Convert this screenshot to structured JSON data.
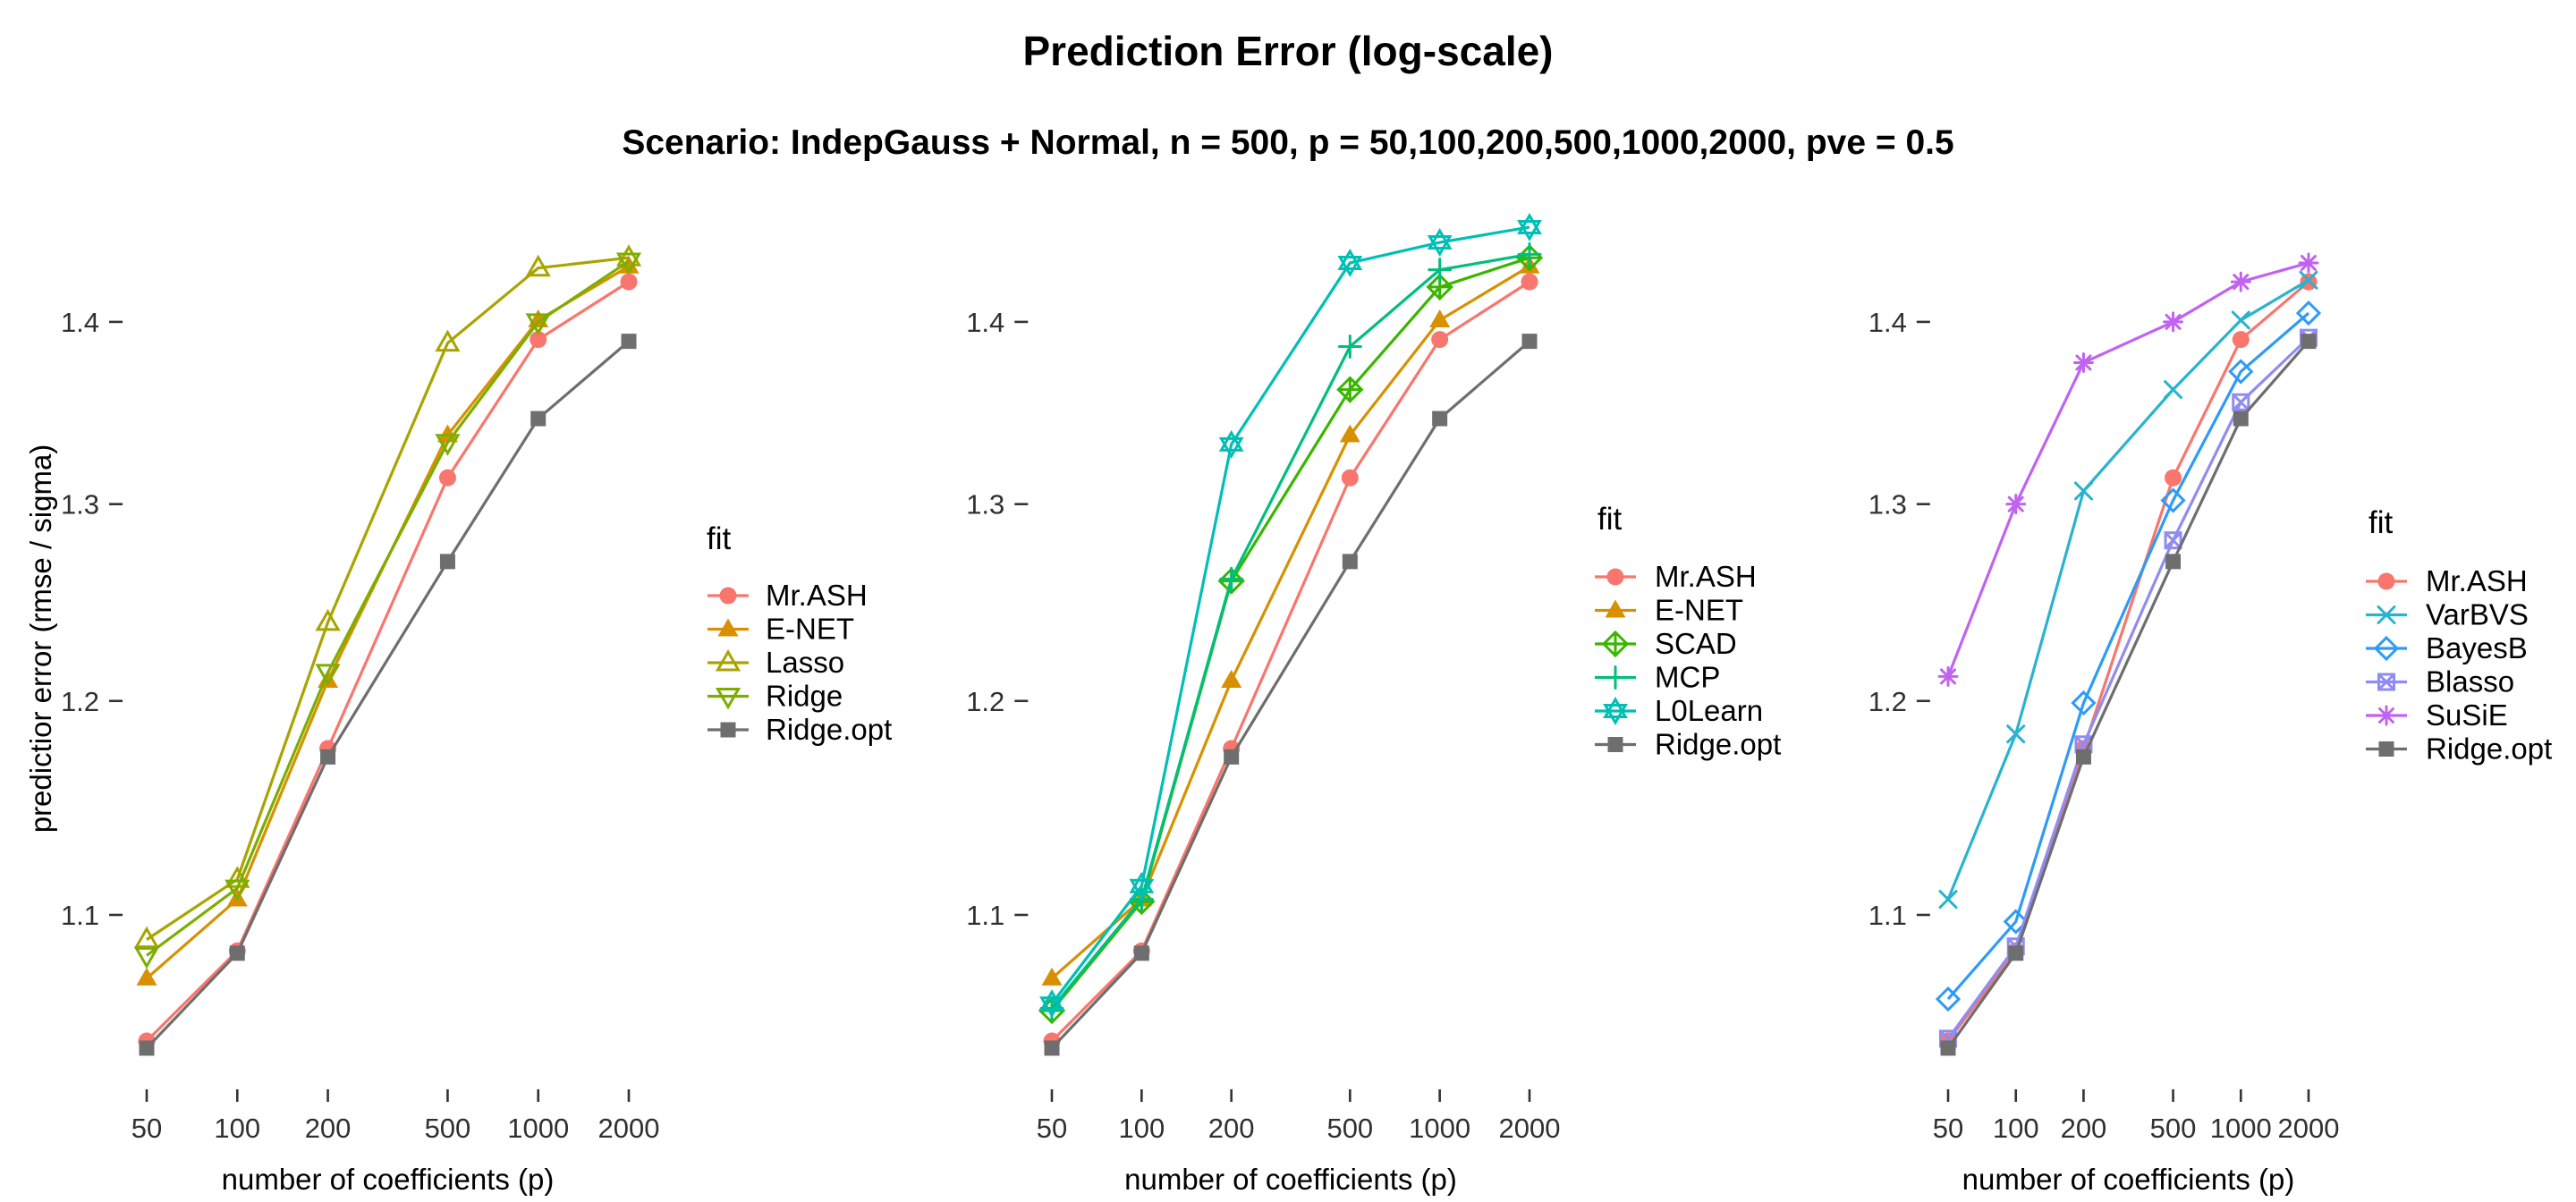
{
  "header": {
    "title": "Prediction Error (log-scale)",
    "subtitle": "Scenario: IndepGauss + Normal, n = 500, p = 50,100,200,500,1000,2000, pve = 0.5"
  },
  "axes": {
    "x_label": "number of coefficients (p)",
    "y_label": "predictior error (rmse / sigma)",
    "x_tick_labels": [
      "50",
      "100",
      "200",
      "500",
      "1000",
      "2000"
    ],
    "y_tick_labels": [
      "1.1",
      "1.2",
      "1.3",
      "1.4"
    ],
    "x_scale": "log",
    "y_scale": "log"
  },
  "legend_title": "fit",
  "colors": {
    "tick": "#333333",
    "text": "#000000",
    "background": "#ffffff"
  },
  "chart_data": [
    {
      "type": "line",
      "panel": "left",
      "title": "Prediction Error (log-scale)",
      "xlabel": "number of coefficients (p)",
      "ylabel": "predictior error (rmse / sigma)",
      "x": [
        50,
        100,
        200,
        500,
        1000,
        2000
      ],
      "x_ticks": [
        50,
        100,
        200,
        500,
        1000,
        2000
      ],
      "y_ticks": [
        1.1,
        1.2,
        1.3,
        1.4
      ],
      "ylim": [
        1.02,
        1.47
      ],
      "grid": false,
      "legend_position": "right",
      "legend_title": "fit",
      "series": [
        {
          "name": "Mr.ASH",
          "marker": "circle-filled",
          "color": "#F8766D",
          "values": [
            1.045,
            1.084,
            1.177,
            1.314,
            1.39,
            1.423
          ]
        },
        {
          "name": "E-NET",
          "marker": "triangle-filled",
          "color": "#D89000",
          "values": [
            1.072,
            1.107,
            1.21,
            1.337,
            1.401,
            1.432
          ]
        },
        {
          "name": "Lasso",
          "marker": "triangle-open",
          "color": "#A9A400",
          "values": [
            1.089,
            1.116,
            1.239,
            1.388,
            1.431,
            1.437
          ]
        },
        {
          "name": "Ridge",
          "marker": "triangle-down-open",
          "color": "#7CAE00",
          "values": [
            1.082,
            1.112,
            1.214,
            1.333,
            1.4,
            1.435
          ]
        },
        {
          "name": "Ridge.opt",
          "marker": "square-filled",
          "color": "#6E6E6E",
          "values": [
            1.042,
            1.083,
            1.173,
            1.27,
            1.346,
            1.389
          ]
        }
      ]
    },
    {
      "type": "line",
      "panel": "middle",
      "title": "Prediction Error (log-scale)",
      "xlabel": "number of coefficients (p)",
      "ylabel": "predictior error (rmse / sigma)",
      "x": [
        50,
        100,
        200,
        500,
        1000,
        2000
      ],
      "x_ticks": [
        50,
        100,
        200,
        500,
        1000,
        2000
      ],
      "y_ticks": [
        1.1,
        1.2,
        1.3,
        1.4
      ],
      "ylim": [
        1.02,
        1.47
      ],
      "grid": false,
      "legend_position": "right",
      "legend_title": "fit",
      "series": [
        {
          "name": "Mr.ASH",
          "marker": "circle-filled",
          "color": "#F8766D",
          "values": [
            1.045,
            1.084,
            1.177,
            1.314,
            1.39,
            1.423
          ]
        },
        {
          "name": "E-NET",
          "marker": "triangle-filled",
          "color": "#D89000",
          "values": [
            1.072,
            1.107,
            1.21,
            1.337,
            1.401,
            1.432
          ]
        },
        {
          "name": "SCAD",
          "marker": "diamond-plus",
          "color": "#39B600",
          "values": [
            1.058,
            1.106,
            1.26,
            1.362,
            1.42,
            1.437
          ]
        },
        {
          "name": "MCP",
          "marker": "plus",
          "color": "#00BF7D",
          "values": [
            1.059,
            1.107,
            1.261,
            1.386,
            1.43,
            1.439
          ]
        },
        {
          "name": "L0Learn",
          "marker": "hexagram",
          "color": "#00BFB4",
          "values": [
            1.061,
            1.113,
            1.332,
            1.434,
            1.446,
            1.455
          ]
        },
        {
          "name": "Ridge.opt",
          "marker": "square-filled",
          "color": "#6E6E6E",
          "values": [
            1.042,
            1.083,
            1.173,
            1.27,
            1.346,
            1.389
          ]
        }
      ]
    },
    {
      "type": "line",
      "panel": "right",
      "title": "Prediction Error (log-scale)",
      "xlabel": "number of coefficients (p)",
      "ylabel": "predictior error (rmse / sigma)",
      "x": [
        50,
        100,
        200,
        500,
        1000,
        2000
      ],
      "x_ticks": [
        50,
        100,
        200,
        500,
        1000,
        2000
      ],
      "y_ticks": [
        1.1,
        1.2,
        1.3,
        1.4
      ],
      "ylim": [
        1.02,
        1.47
      ],
      "grid": false,
      "legend_position": "right",
      "legend_title": "fit",
      "series": [
        {
          "name": "Mr.ASH",
          "marker": "circle-filled",
          "color": "#F8766D",
          "values": [
            1.045,
            1.084,
            1.177,
            1.314,
            1.39,
            1.423
          ]
        },
        {
          "name": "VarBVS",
          "marker": "cross",
          "color": "#29B3CE",
          "values": [
            1.107,
            1.184,
            1.307,
            1.362,
            1.401,
            1.424
          ]
        },
        {
          "name": "BayesB",
          "marker": "diamond-open",
          "color": "#2E9BF5",
          "values": [
            1.063,
            1.097,
            1.199,
            1.302,
            1.372,
            1.405
          ]
        },
        {
          "name": "Blasso",
          "marker": "square-cross",
          "color": "#8F8CF2",
          "values": [
            1.046,
            1.086,
            1.179,
            1.281,
            1.355,
            1.391
          ]
        },
        {
          "name": "SuSiE",
          "marker": "asterisk",
          "color": "#C163F1",
          "values": [
            1.212,
            1.3,
            1.377,
            1.4,
            1.423,
            1.434
          ]
        },
        {
          "name": "Ridge.opt",
          "marker": "square-filled",
          "color": "#6E6E6E",
          "values": [
            1.042,
            1.083,
            1.173,
            1.27,
            1.346,
            1.389
          ]
        }
      ]
    }
  ]
}
